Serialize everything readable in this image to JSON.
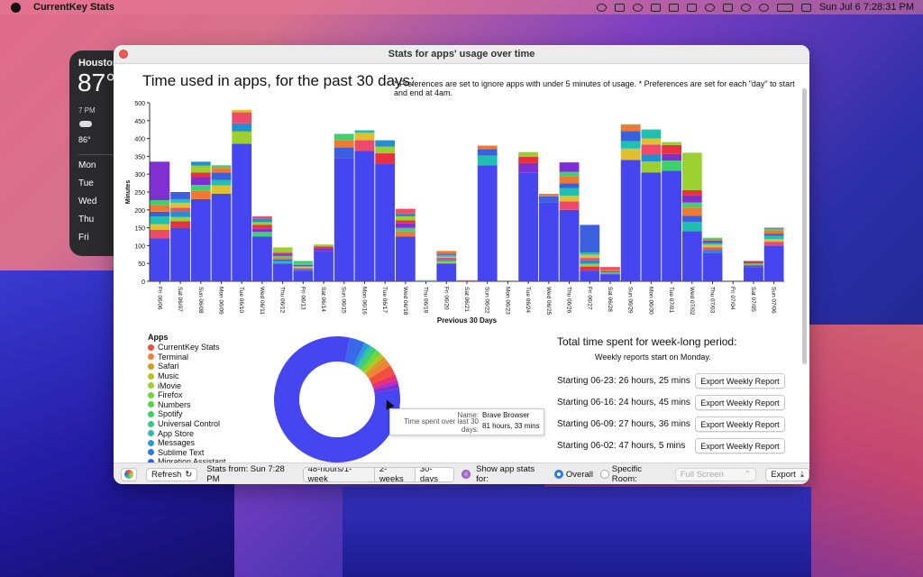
{
  "menubar": {
    "app_name": "CurrentKey Stats",
    "clock": "Sun Jul 6  7:28:31 PM"
  },
  "weather": {
    "city": "Houston",
    "temp": "87°",
    "hour": "7 PM",
    "hour_temp": "86°",
    "days": [
      "Mon",
      "Tue",
      "Wed",
      "Thu",
      "Fri"
    ]
  },
  "window": {
    "title": "Stats for apps' usage over time",
    "heading": "Time used in apps, for the past 30 days:",
    "note": "* Preferences are set to ignore apps with under 5 minutes of usage.  * Preferences are set for each \"day\" to start and end at 4am."
  },
  "chart_data": {
    "type": "bar",
    "stacked": true,
    "ylabel": "Minutes",
    "xlabel": "Previous 30 Days",
    "ylim": [
      0,
      500
    ],
    "yticks": [
      0,
      50,
      100,
      150,
      200,
      250,
      300,
      350,
      400,
      450,
      500
    ],
    "categories": [
      "Fri 06/06",
      "Sat 06/07",
      "Sun 06/08",
      "Mon 06/09",
      "Tue 06/10",
      "Wed 06/11",
      "Thu 06/12",
      "Fri 06/13",
      "Sat 06/14",
      "Sun 06/15",
      "Mon 06/16",
      "Tue 06/17",
      "Wed 06/18",
      "Thu 06/19",
      "Fri 06/20",
      "Sat 06/21",
      "Sun 06/22",
      "Mon 06/23",
      "Tue 06/24",
      "Wed 06/25",
      "Thu 06/26",
      "Fri 06/27",
      "Sat 06/28",
      "Sun 06/29",
      "Mon 06/30",
      "Tue 07/01",
      "Wed 07/02",
      "Thu 07/03",
      "Fri 07/04",
      "Sat 07/05",
      "Sun 07/06"
    ],
    "totals": [
      335,
      250,
      335,
      325,
      480,
      182,
      95,
      57,
      103,
      413,
      423,
      395,
      203,
      3,
      85,
      3,
      380,
      0,
      362,
      245,
      333,
      158,
      40,
      440,
      425,
      390,
      360,
      122,
      0,
      58,
      150
    ],
    "main_series": {
      "name": "Brave Browser",
      "color": "#4646f0",
      "values": [
        120,
        150,
        230,
        245,
        385,
        125,
        50,
        30,
        85,
        345,
        365,
        330,
        125,
        0,
        50,
        0,
        325,
        0,
        305,
        220,
        200,
        30,
        20,
        340,
        305,
        310,
        140,
        80,
        0,
        40,
        100
      ]
    },
    "palette": [
      "#f04a6a",
      "#e83040",
      "#f07830",
      "#e0c030",
      "#9ad030",
      "#40d070",
      "#20c0b0",
      "#2090d0",
      "#8030d0",
      "#3a60e0"
    ]
  },
  "legend": {
    "title": "Apps",
    "items": [
      {
        "label": "CurrentKey Stats",
        "color": "#f04e3e"
      },
      {
        "label": "Terminal",
        "color": "#f0833a"
      },
      {
        "label": "Safari",
        "color": "#d79b20"
      },
      {
        "label": "Music",
        "color": "#b8c424"
      },
      {
        "label": "iMovie",
        "color": "#9ad12e"
      },
      {
        "label": "Firefox",
        "color": "#6fd63c"
      },
      {
        "label": "Numbers",
        "color": "#52d44a"
      },
      {
        "label": "Spotify",
        "color": "#3fd065"
      },
      {
        "label": "Universal Control",
        "color": "#34c98a"
      },
      {
        "label": "App Store",
        "color": "#2fb9b8"
      },
      {
        "label": "Messages",
        "color": "#2c9bd6"
      },
      {
        "label": "Sublime Text",
        "color": "#2a7be0"
      },
      {
        "label": "Migration Assistant",
        "color": "#2f62e4"
      }
    ]
  },
  "donut": {
    "slices": [
      {
        "value": 81.55,
        "color": "#4646f0"
      },
      {
        "value": 4,
        "color": "#3a68ea"
      },
      {
        "value": 1.2,
        "color": "#2c9bd6"
      },
      {
        "value": 0.8,
        "color": "#2fb9b8"
      },
      {
        "value": 0.6,
        "color": "#34c98a"
      },
      {
        "value": 1,
        "color": "#3fd065"
      },
      {
        "value": 1.4,
        "color": "#6fd63c"
      },
      {
        "value": 1,
        "color": "#b8c424"
      },
      {
        "value": 1,
        "color": "#d79b20"
      },
      {
        "value": 1.8,
        "color": "#f0833a"
      },
      {
        "value": 2.5,
        "color": "#f04e3e"
      },
      {
        "value": 1.5,
        "color": "#e83070"
      },
      {
        "value": 1,
        "color": "#c028c0"
      },
      {
        "value": 1.3,
        "color": "#8030d0"
      }
    ]
  },
  "tooltip": {
    "name_key": "Name:",
    "name_val": "Brave Browser",
    "time_key": "Time spent over last 30 days:",
    "time_val": "81 hours, 33 mins"
  },
  "weekly": {
    "title": "Total time spent for week-long period:",
    "subtitle": "Weekly reports start on Monday.",
    "rows": [
      {
        "start": "Starting 06-23:",
        "value": "26 hours, 25 mins",
        "button": "Export Weekly Report"
      },
      {
        "start": "Starting 06-16:",
        "value": "24 hours, 45 mins",
        "button": "Export Weekly Report"
      },
      {
        "start": "Starting 06-09:",
        "value": "27 hours, 36 mins",
        "button": "Export Weekly Report"
      },
      {
        "start": "Starting 06-02:",
        "value": "47 hours, 5 mins",
        "button": "Export Weekly Report"
      }
    ]
  },
  "toolbar": {
    "refresh": "Refresh",
    "stats_from": "Stats from:  Sun 7:28 PM",
    "range_48h": "48-hours/1-week",
    "range_2w": "2-weeks",
    "range_30d": "30-days",
    "show_for": "Show app stats for:",
    "overall": "Overall",
    "specific_room": "Specific Room:",
    "room_placeholder": "Full Screen",
    "export": "Export"
  }
}
